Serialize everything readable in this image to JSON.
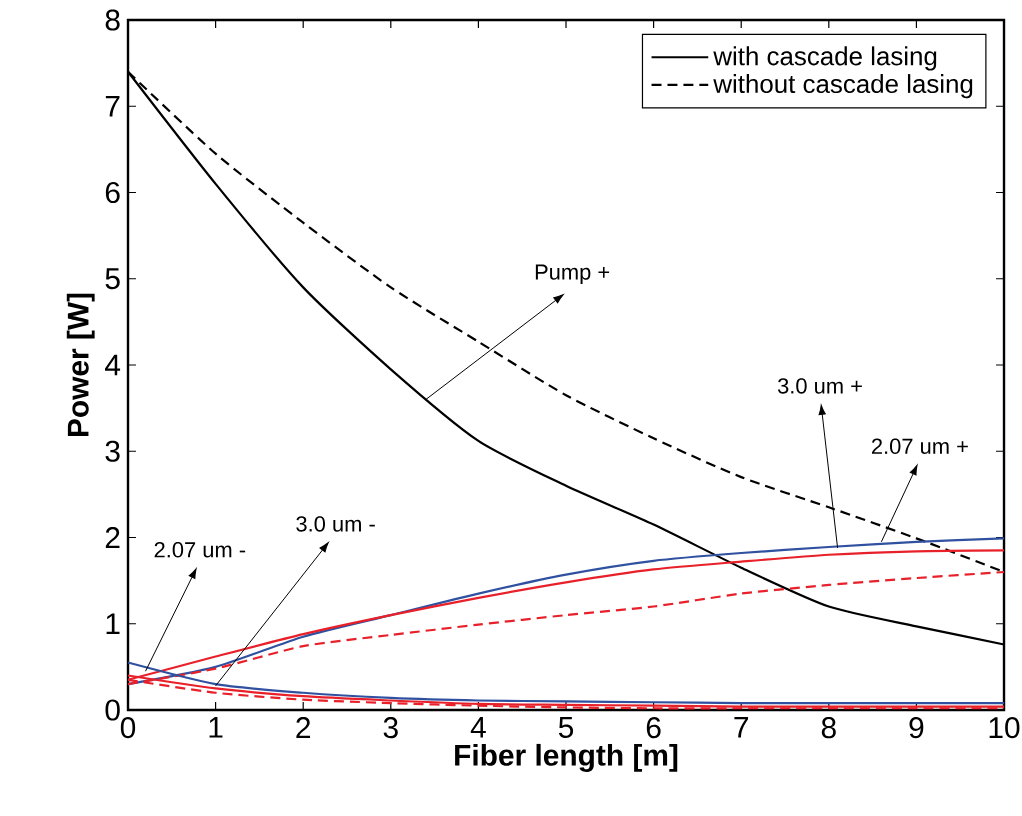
{
  "chart_data": {
    "type": "line",
    "xlabel": "Fiber length [m]",
    "ylabel": "Power [W]",
    "x": [
      0,
      1,
      2,
      3,
      4,
      5,
      6,
      7,
      8,
      9,
      10
    ],
    "xlim": [
      0,
      10
    ],
    "ylim": [
      0,
      8
    ],
    "xticks": [
      0,
      1,
      2,
      3,
      4,
      5,
      6,
      7,
      8,
      9,
      10
    ],
    "yticks": [
      0,
      1,
      2,
      3,
      4,
      5,
      6,
      7,
      8
    ],
    "legend": "top right",
    "series": [
      {
        "name": "with cascade lasing",
        "color": "#000000",
        "line_style": "solid",
        "values": [
          7.4,
          6.1,
          4.9,
          3.95,
          3.12,
          2.6,
          2.15,
          1.65,
          1.2,
          0.97,
          0.76
        ]
      },
      {
        "name": "without cascade lasing",
        "color": "#000000",
        "line_style": "dashed",
        "values": [
          7.4,
          6.45,
          5.65,
          4.9,
          4.27,
          3.65,
          3.15,
          2.7,
          2.35,
          1.99,
          1.6
        ]
      },
      {
        "color": "#3050a0",
        "line_style": "solid",
        "values": [
          0.3,
          0.5,
          0.85,
          1.1,
          1.35,
          1.57,
          1.73,
          1.82,
          1.89,
          1.95,
          1.99
        ]
      },
      {
        "color": "#e8202a",
        "line_style": "solid",
        "values": [
          0.35,
          0.62,
          0.88,
          1.1,
          1.3,
          1.48,
          1.63,
          1.72,
          1.8,
          1.84,
          1.85
        ]
      },
      {
        "color": "#e8202a",
        "line_style": "dashed",
        "values": [
          0.3,
          0.48,
          0.74,
          0.87,
          0.99,
          1.1,
          1.2,
          1.35,
          1.45,
          1.53,
          1.6
        ]
      },
      {
        "color": "#e8202a",
        "line_style": "dashed",
        "values": [
          0.35,
          0.2,
          0.12,
          0.08,
          0.05,
          0.03,
          0.02,
          0.02,
          0.02,
          0.02,
          0.02
        ]
      },
      {
        "color": "#e8202a",
        "line_style": "solid",
        "values": [
          0.4,
          0.25,
          0.16,
          0.11,
          0.07,
          0.06,
          0.05,
          0.04,
          0.04,
          0.04,
          0.04
        ]
      },
      {
        "color": "#3050a0",
        "line_style": "solid",
        "values": [
          0.55,
          0.3,
          0.2,
          0.14,
          0.11,
          0.1,
          0.09,
          0.08,
          0.08,
          0.08,
          0.08
        ]
      }
    ],
    "annotations": [
      {
        "text": "Pump +",
        "x": 3.4,
        "y": 3.6
      },
      {
        "text": "3.0 um +",
        "x": 8.1,
        "y": 1.88
      },
      {
        "text": "2.07 um +",
        "x": 8.6,
        "y": 1.95
      },
      {
        "text": "3.0 um -",
        "x": 1.0,
        "y": 0.28
      },
      {
        "text": "2.07 um -",
        "x": 0.2,
        "y": 0.45
      }
    ]
  }
}
